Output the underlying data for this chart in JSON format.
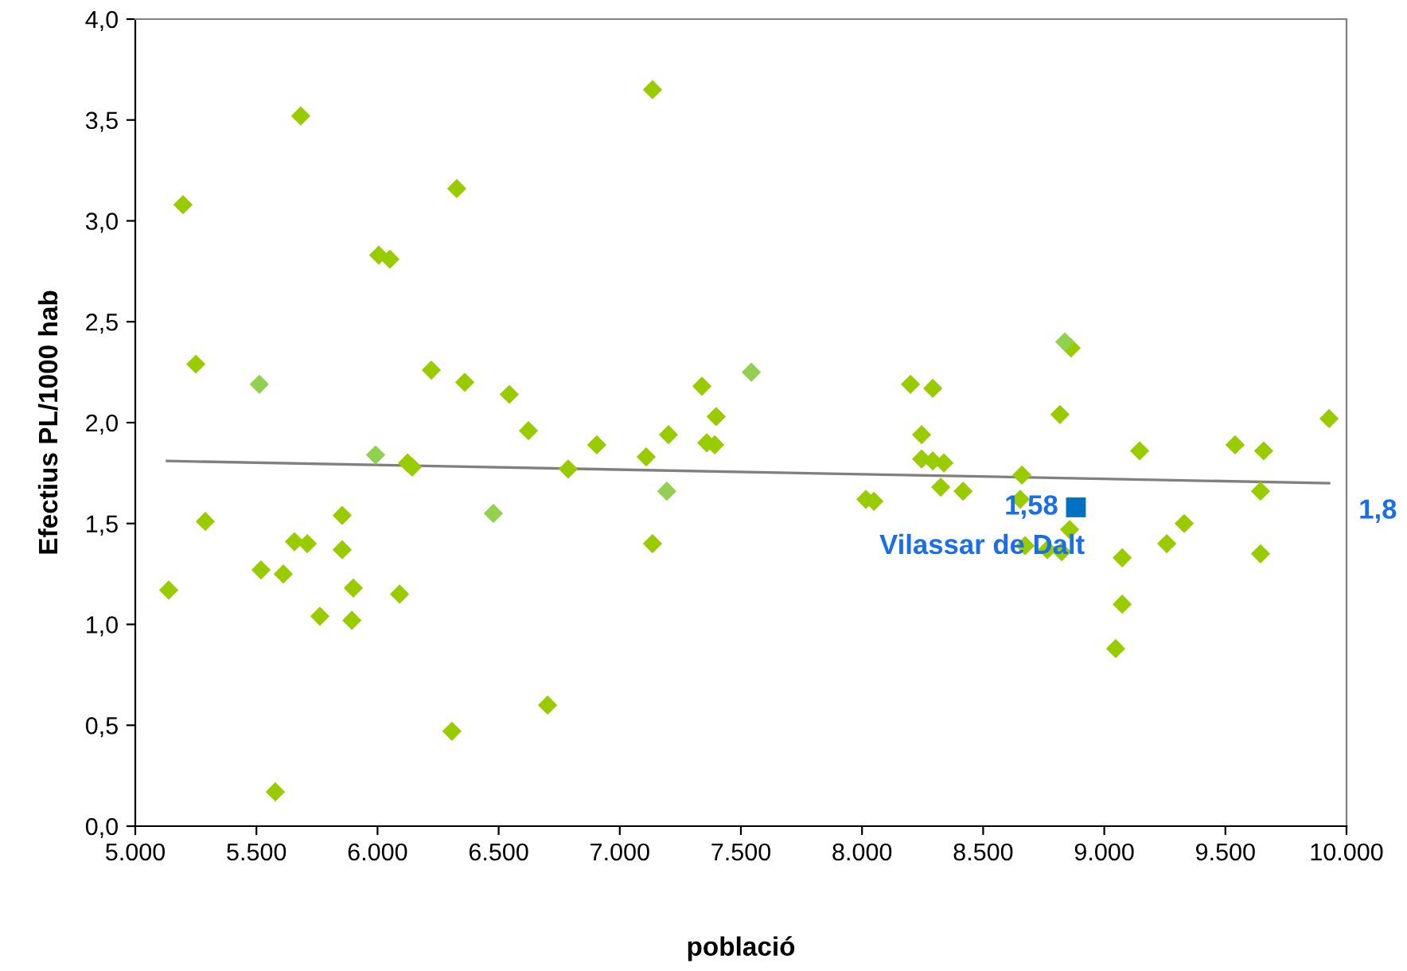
{
  "chart_data": {
    "type": "scatter",
    "xlabel": "població",
    "ylabel": "Efectius PL/1000 hab",
    "xlim": [
      5000,
      10000
    ],
    "ylim": [
      0,
      4.0
    ],
    "xticks": [
      {
        "value": 5000,
        "label": "5.000"
      },
      {
        "value": 5500,
        "label": "5.500"
      },
      {
        "value": 6000,
        "label": "6.000"
      },
      {
        "value": 6500,
        "label": "6.500"
      },
      {
        "value": 7000,
        "label": "7.000"
      },
      {
        "value": 7500,
        "label": "7.500"
      },
      {
        "value": 8000,
        "label": "8.000"
      },
      {
        "value": 8500,
        "label": "8.500"
      },
      {
        "value": 9000,
        "label": "9.000"
      },
      {
        "value": 9500,
        "label": "9.500"
      },
      {
        "value": 10000,
        "label": "10.000"
      }
    ],
    "yticks": [
      {
        "value": 0,
        "label": "0,0"
      },
      {
        "value": 0.5,
        "label": "0,5"
      },
      {
        "value": 1.0,
        "label": "1,0"
      },
      {
        "value": 1.5,
        "label": "1,5"
      },
      {
        "value": 2.0,
        "label": "2,0"
      },
      {
        "value": 2.5,
        "label": "2,5"
      },
      {
        "value": 3.0,
        "label": "3,0"
      },
      {
        "value": 3.5,
        "label": "3,5"
      },
      {
        "value": 4.0,
        "label": "4,0"
      }
    ],
    "grid": false,
    "legend": false,
    "marker": "diamond",
    "annotations": [
      "1,8"
    ],
    "series": [
      {
        "color": "#99cc00",
        "x": [
          5683,
          5197,
          6327,
          6005,
          6051,
          5250,
          6222,
          6360,
          6544,
          6623,
          6905,
          6124,
          6143,
          6787,
          5289,
          5854,
          5657,
          5710,
          5854,
          5519,
          5611,
          5138,
          5900,
          6091,
          5762,
          5894,
          6702,
          6307,
          5578,
          7135,
          7109,
          7135,
          7201,
          7339,
          7398,
          7359,
          7392,
          8016,
          8049,
          8200,
          8292,
          8246,
          8246,
          8292,
          8338,
          8325,
          8417,
          8660,
          8653,
          8673,
          8765,
          8824,
          8857,
          8863,
          8817,
          9074,
          9074,
          9047,
          9146,
          9258,
          9330,
          9540,
          9658,
          9645,
          9645,
          9928
        ],
        "values": [
          3.52,
          3.08,
          3.16,
          2.83,
          2.81,
          2.29,
          2.26,
          2.2,
          2.14,
          1.96,
          1.89,
          1.8,
          1.78,
          1.77,
          1.51,
          1.54,
          1.41,
          1.4,
          1.37,
          1.27,
          1.25,
          1.17,
          1.18,
          1.15,
          1.04,
          1.02,
          0.6,
          0.47,
          0.17,
          3.65,
          1.83,
          1.4,
          1.94,
          2.18,
          2.03,
          1.9,
          1.89,
          1.62,
          1.61,
          2.19,
          2.17,
          1.94,
          1.82,
          1.81,
          1.8,
          1.68,
          1.66,
          1.74,
          1.62,
          1.39,
          1.37,
          1.36,
          1.47,
          2.37,
          2.04,
          1.33,
          1.1,
          0.88,
          1.86,
          1.4,
          1.5,
          1.89,
          1.86,
          1.66,
          1.35,
          2.02
        ]
      },
      {
        "color": "#92d050",
        "x": [
          5512,
          5992,
          6478,
          7194,
          7543,
          8837
        ],
        "values": [
          2.19,
          1.84,
          1.55,
          1.66,
          2.25,
          2.4
        ]
      },
      {
        "type": "line",
        "color": "#808080",
        "marker": "none",
        "line_style": "solid",
        "x": [
          5131,
          9928
        ],
        "values": [
          1.81,
          1.7
        ]
      },
      {
        "type": "scatter",
        "name": "Vilassar de Dalt",
        "color": "#0070c0",
        "marker": "square",
        "x": [
          8883
        ],
        "values": [
          1.58
        ],
        "value_labels": [
          "1,58"
        ]
      }
    ]
  }
}
